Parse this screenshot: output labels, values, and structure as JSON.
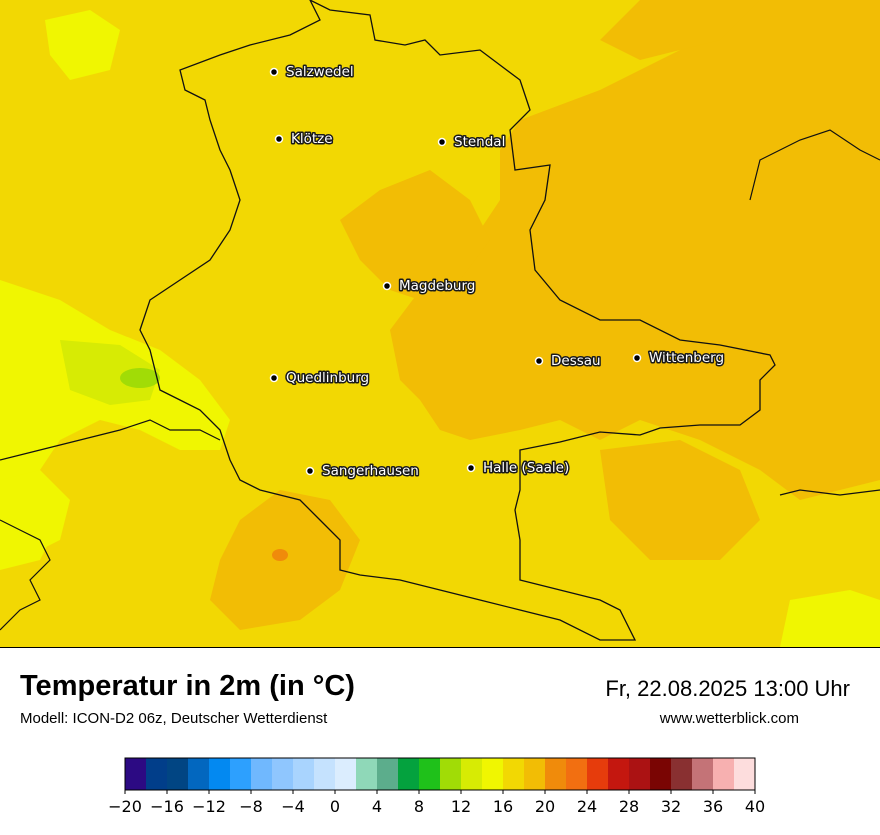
{
  "map": {
    "cities": [
      {
        "name": "Salzwedel"
      },
      {
        "name": "Klötze"
      },
      {
        "name": "Stendal"
      },
      {
        "name": "Magdeburg"
      },
      {
        "name": "Dessau"
      },
      {
        "name": "Wittenberg"
      },
      {
        "name": "Quedlinburg"
      },
      {
        "name": "Sangerhausen"
      },
      {
        "name": "Halle (Saale)"
      }
    ]
  },
  "footer": {
    "title": "Temperatur in 2m (in °C)",
    "subtitle": "Modell: ICON-D2 06z, Deutscher Wetterdienst",
    "datetime": "Fr, 22.08.2025 13:00 Uhr",
    "website": "www.wetterblick.com"
  },
  "legend": {
    "min": -20,
    "max": 40,
    "step": 2,
    "colors": [
      "#2c0a83",
      "#013e8a",
      "#014583",
      "#0267bf",
      "#0389f1",
      "#2da0fe",
      "#70b8fe",
      "#8fc6fe",
      "#a9d4fe",
      "#c5e2fe",
      "#dbedfe",
      "#8fd8b8",
      "#5cad8c",
      "#04a23e",
      "#1fc11a",
      "#a1dc06",
      "#d7eb04",
      "#f0f601",
      "#f2d803",
      "#f2bd05",
      "#f08b0b",
      "#f26f11",
      "#e63c0c",
      "#c4170f",
      "#ab1213",
      "#7a0503",
      "#893031",
      "#c47377",
      "#f7b0b0",
      "#fddddd"
    ],
    "ticks": [
      "−20",
      "−16",
      "−12",
      "−8",
      "−4",
      "0",
      "4",
      "8",
      "12",
      "16",
      "20",
      "24",
      "28",
      "32",
      "36",
      "40"
    ]
  }
}
